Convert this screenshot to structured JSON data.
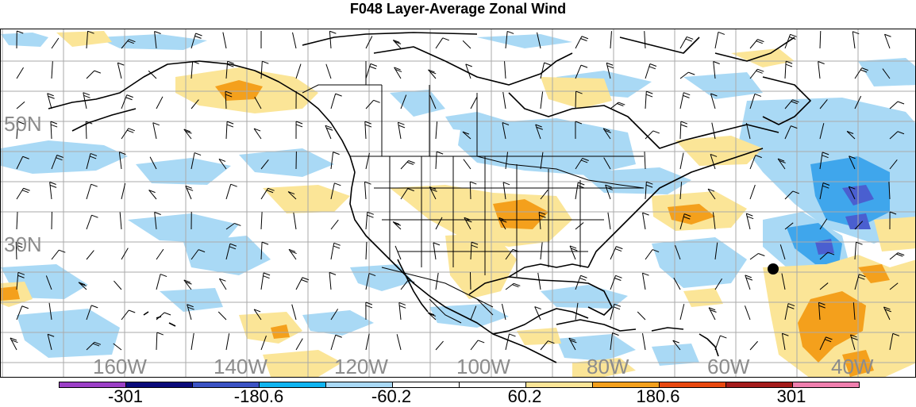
{
  "title": "F048 Layer-Average Zonal Wind",
  "latitude_labels": [
    "50N",
    "30N"
  ],
  "longitude_labels": [
    "160W",
    "140W",
    "120W",
    "100W",
    "80W",
    "60W",
    "40W"
  ],
  "colorbar": {
    "colors": [
      "#9b3fc6",
      "#0a0a7a",
      "#3b53c4",
      "#0fb4f0",
      "#a9d9f5",
      "#ffffff",
      "#ffffff",
      "#fbe597",
      "#f4a01c",
      "#e8480f",
      "#a41b1b",
      "#ef7fae"
    ],
    "labels": [
      "-301",
      "-180.6",
      "-60.2",
      "60.2",
      "180.6",
      "301"
    ]
  },
  "legend_colors": {
    "light_blue": "#a9d9f5",
    "mid_blue": "#3fa6ec",
    "dark_blue": "#4a5fd0",
    "light_orange": "#fbe597",
    "orange": "#f4a01c"
  },
  "marker": "black-dot"
}
